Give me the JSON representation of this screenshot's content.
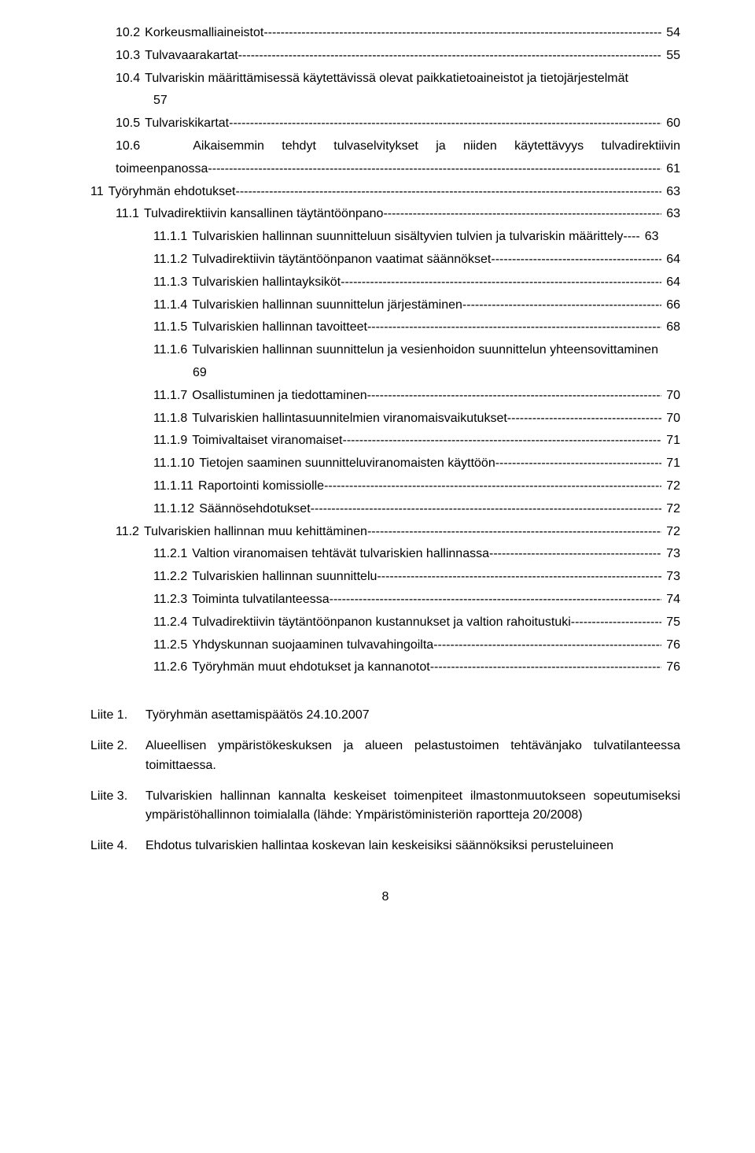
{
  "toc": {
    "lines": [
      {
        "level": 1,
        "num": "10.2",
        "label": "Korkeusmalliaineistot",
        "page": "54",
        "cont": null
      },
      {
        "level": 1,
        "num": "10.3",
        "label": "Tulvavaarakartat",
        "page": "55",
        "cont": null
      },
      {
        "level": 1,
        "num": "10.4",
        "label": "Tulvariskin määrittämisessä käytettävissä olevat paikkatietoaineistot ja tietojärjestelmät",
        "page": null,
        "cont": "57"
      },
      {
        "level": 1,
        "num": "10.5",
        "label": "Tulvariskikartat",
        "page": "60",
        "cont": null
      },
      {
        "level": 1,
        "num": "10.6",
        "label": "Aikaisemmin   tehdyt   tulvaselvitykset   ja   niiden   käytettävyys   tulvadirektiivin",
        "page": null,
        "cont": null,
        "nextline": {
          "level": 1,
          "num": "",
          "label": "toimeenpanossa",
          "page": "61"
        }
      },
      {
        "level": 0,
        "num": "11",
        "label": "Työryhmän ehdotukset",
        "page": "63",
        "cont": null
      },
      {
        "level": 1,
        "num": "11.1",
        "label": "Tulvadirektiivin kansallinen täytäntöönpano",
        "page": "63",
        "cont": null
      },
      {
        "level": 2,
        "num": "11.1.1",
        "label": "Tulvariskien hallinnan suunnitteluun sisältyvien tulvien ja tulvariskin määrittely",
        "page": "63",
        "cont": null,
        "tight": true
      },
      {
        "level": 2,
        "num": "11.1.2",
        "label": "Tulvadirektiivin täytäntöönpanon vaatimat säännökset",
        "page": "64",
        "cont": null
      },
      {
        "level": 2,
        "num": "11.1.3",
        "label": "Tulvariskien hallintayksiköt",
        "page": "64",
        "cont": null
      },
      {
        "level": 2,
        "num": "11.1.4",
        "label": "Tulvariskien hallinnan suunnittelun järjestäminen",
        "page": "66",
        "cont": null
      },
      {
        "level": 2,
        "num": "11.1.5",
        "label": "Tulvariskien hallinnan tavoitteet",
        "page": "68",
        "cont": null
      },
      {
        "level": 2,
        "num": "11.1.6",
        "label": "Tulvariskien hallinnan suunnittelun ja vesienhoidon suunnittelun yhteensovittaminen",
        "page": null,
        "cont": "69"
      },
      {
        "level": 2,
        "num": "11.1.7",
        "label": "Osallistuminen ja tiedottaminen",
        "page": "70",
        "cont": null
      },
      {
        "level": 2,
        "num": "11.1.8",
        "label": "Tulvariskien hallintasuunnitelmien viranomaisvaikutukset",
        "page": "70",
        "cont": null
      },
      {
        "level": 2,
        "num": "11.1.9",
        "label": "Toimivaltaiset viranomaiset",
        "page": "71",
        "cont": null
      },
      {
        "level": 2,
        "num": "11.1.10",
        "label": "Tietojen saaminen suunnitteluviranomaisten käyttöön",
        "page": "71",
        "cont": null
      },
      {
        "level": 2,
        "num": "11.1.11",
        "label": "Raportointi komissiolle",
        "page": "72",
        "cont": null
      },
      {
        "level": 2,
        "num": "11.1.12",
        "label": "Säännösehdotukset",
        "page": "72",
        "cont": null
      },
      {
        "level": 1,
        "num": "11.2",
        "label": "Tulvariskien hallinnan muu kehittäminen",
        "page": "72",
        "cont": null
      },
      {
        "level": 2,
        "num": "11.2.1",
        "label": "Valtion viranomaisen tehtävät tulvariskien hallinnassa",
        "page": "73",
        "cont": null
      },
      {
        "level": 2,
        "num": "11.2.2",
        "label": "Tulvariskien hallinnan suunnittelu",
        "page": "73",
        "cont": null
      },
      {
        "level": 2,
        "num": "11.2.3",
        "label": "Toiminta tulvatilanteessa",
        "page": "74",
        "cont": null
      },
      {
        "level": 2,
        "num": "11.2.4",
        "label": "Tulvadirektiivin täytäntöönpanon kustannukset ja valtion rahoitustuki",
        "page": "75",
        "cont": null
      },
      {
        "level": 2,
        "num": "11.2.5",
        "label": "Yhdyskunnan suojaaminen tulvavahingoilta",
        "page": "76",
        "cont": null
      },
      {
        "level": 2,
        "num": "11.2.6",
        "label": "Työryhmän muut ehdotukset ja kannanotot",
        "page": "76",
        "cont": null
      }
    ]
  },
  "appendix": {
    "items": [
      {
        "label": "Liite 1.",
        "text": "Työryhmän asettamispäätös 24.10.2007",
        "justify": false
      },
      {
        "label": "Liite 2.",
        "text": "Alueellisen ympäristökeskuksen ja alueen pelastustoimen tehtävänjako tulvatilanteessa toimittaessa.",
        "justify": true
      },
      {
        "label": "Liite 3.",
        "text": "Tulvariskien hallinnan kannalta keskeiset toimenpiteet ilmastonmuutokseen sopeutumiseksi ympäristöhallinnon toimialalla (lähde: Ympäristöministeriön raportteja 20/2008)",
        "justify": true
      },
      {
        "label": "Liite 4.",
        "text": "Ehdotus tulvariskien hallintaa koskevan lain keskeisiksi säännöksiksi perusteluineen",
        "justify": false
      }
    ]
  },
  "page_number": "8"
}
